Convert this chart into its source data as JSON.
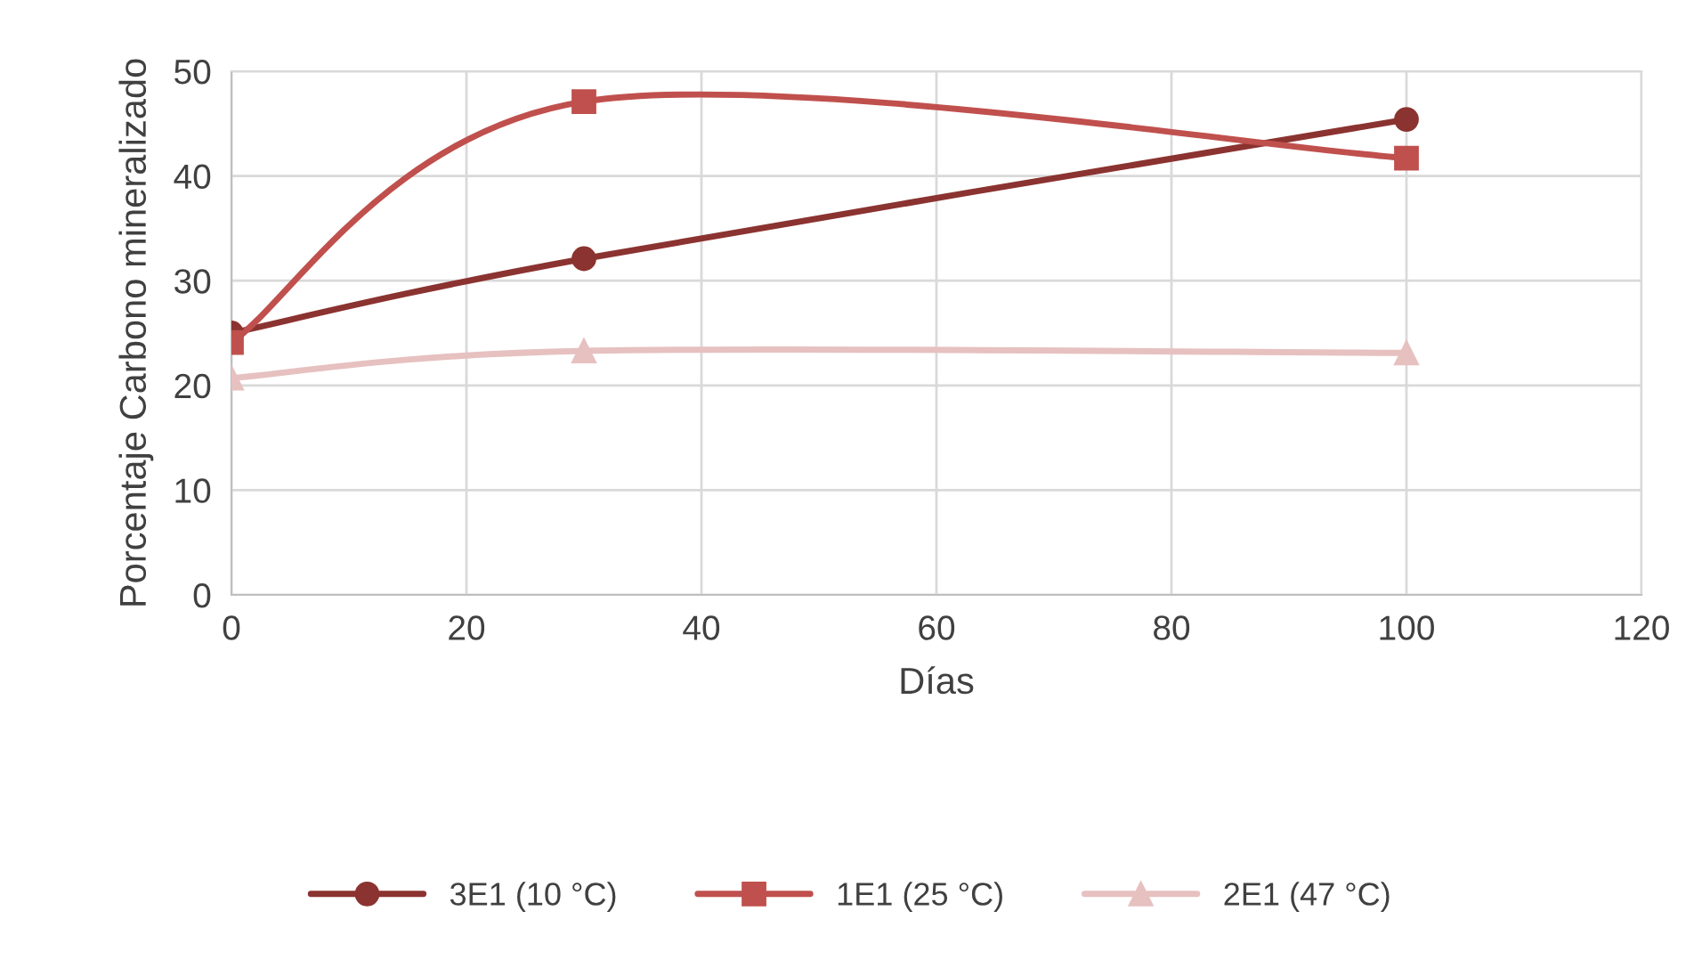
{
  "chart_data": {
    "type": "line",
    "xlabel": "Días",
    "ylabel": "Porcentaje Carbono mineralizado",
    "x": [
      0,
      30,
      100
    ],
    "series": [
      {
        "name": "3E1 (10 °C)",
        "color": "#8b3330",
        "marker": "circle",
        "values": [
          25.0,
          32.1,
          45.4
        ]
      },
      {
        "name": "1E1 (25 °C)",
        "color": "#c0504d",
        "marker": "square",
        "values": [
          24.1,
          47.1,
          41.7
        ]
      },
      {
        "name": "2E1 (47 °C)",
        "color": "#e6c1c0",
        "marker": "triangle",
        "values": [
          20.7,
          23.3,
          23.1
        ]
      }
    ],
    "xlim": [
      0,
      120
    ],
    "xticks": [
      0,
      20,
      40,
      60,
      80,
      100,
      120
    ],
    "ylim": [
      0,
      50
    ],
    "yticks": [
      0,
      10,
      20,
      30,
      40,
      50
    ],
    "grid": true,
    "legend": "bottom",
    "line_style": "solid"
  }
}
